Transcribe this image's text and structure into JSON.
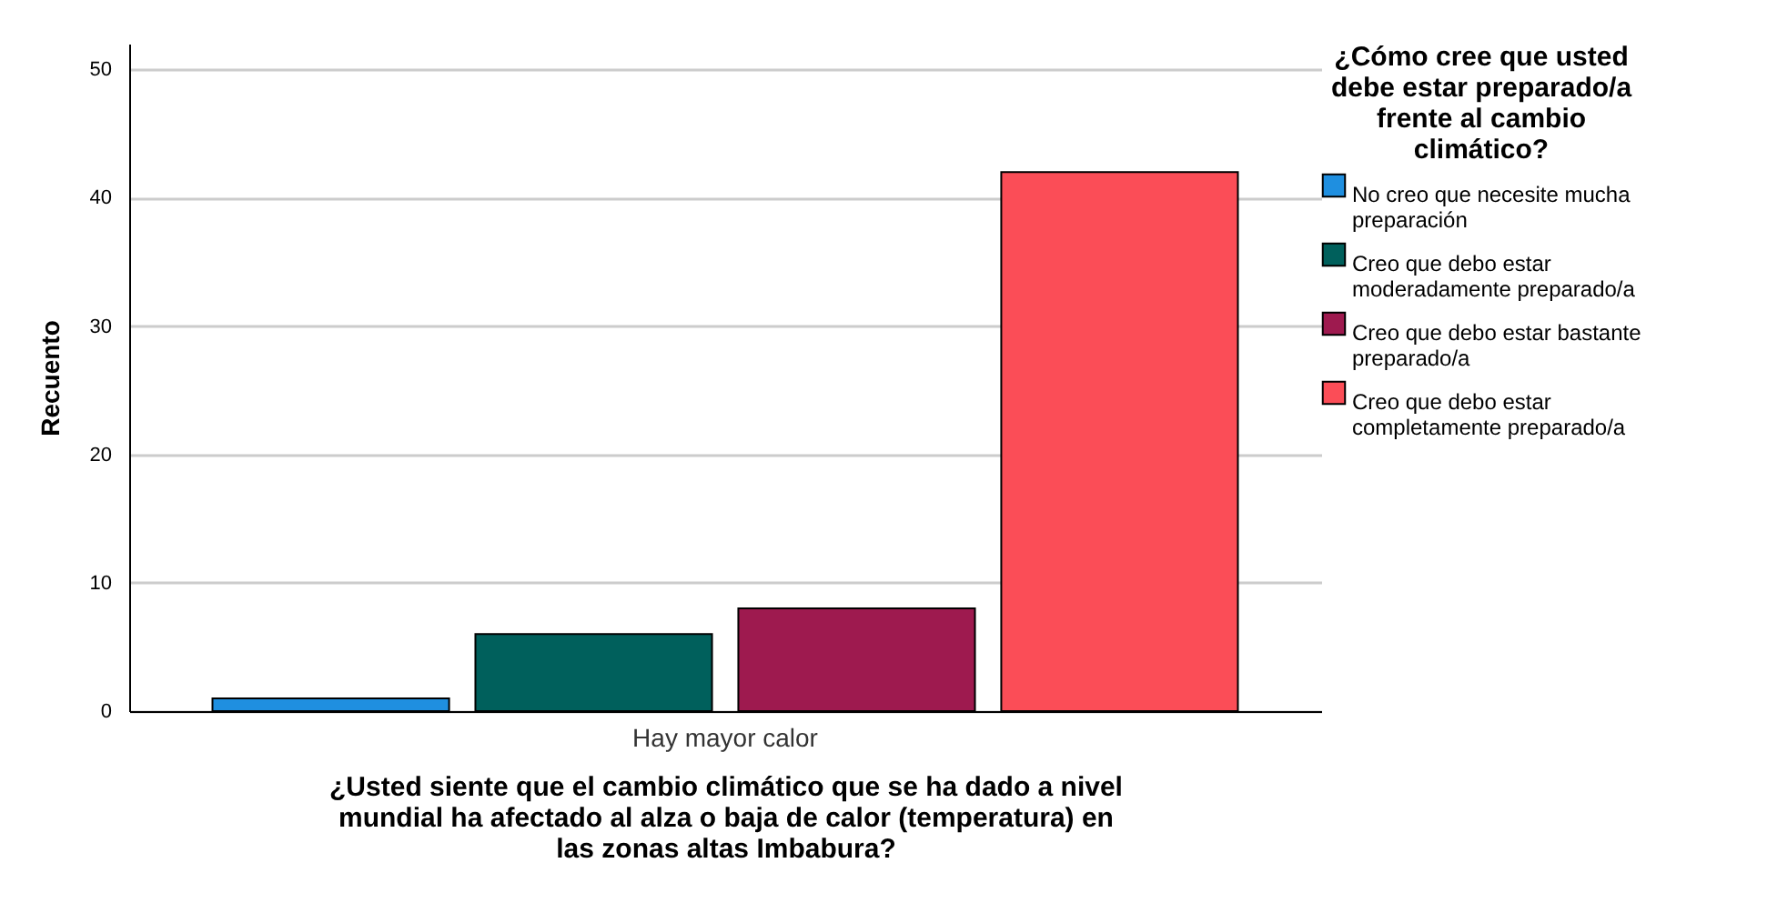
{
  "chart_data": {
    "type": "bar",
    "xlabel": "¿Usted siente que el cambio climático que se ha dado a nivel mundial ha afectado al alza o baja de calor (temperatura) en las zonas altas Imbabura?",
    "ylabel": "Recuento",
    "legend_title": "¿Cómo cree que  usted debe estar preparado/a frente al cambio climático?",
    "categories": [
      "Hay mayor calor"
    ],
    "series": [
      {
        "name": "No creo que necesite mucha preparación",
        "color": "#1f8fe0",
        "values": [
          1
        ]
      },
      {
        "name": "Creo que debo estar moderadamente preparado/a",
        "color": "#00605c",
        "values": [
          6
        ]
      },
      {
        "name": "Creo que debo estar bastante preparado/a",
        "color": "#9e1a4f",
        "values": [
          8
        ]
      },
      {
        "name": "Creo que debo estar completamente preparado/a",
        "color": "#fb4d57",
        "values": [
          42
        ]
      }
    ],
    "ylim": [
      0,
      52
    ],
    "yticks": [
      0,
      10,
      20,
      30,
      40,
      50
    ],
    "grid": "y",
    "legend": "right"
  }
}
